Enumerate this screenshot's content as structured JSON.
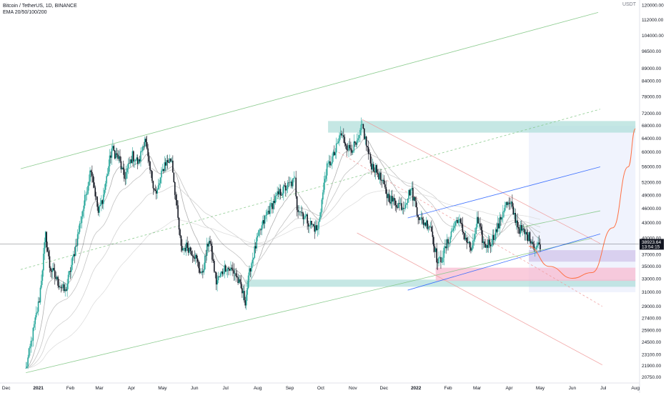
{
  "header": {
    "symbol": "Bitcoin / TetherUS, 1D, BINANCE",
    "indicator": "EMA 20/50/100/200",
    "currency": "USDT"
  },
  "colors": {
    "up": "#26a69a",
    "down": "#131722",
    "price_line": "#131722",
    "price_label_bg": "#131722",
    "green_zone": "#b2dfdb",
    "pink_zone": "#f8bbd0",
    "purple_zone": "#d1c4e9",
    "blue_zone": "#e3eafc",
    "channel_green": "#81c784",
    "channel_red": "#ef9a9a",
    "channel_blue": "#2962ff",
    "orange_curve": "#ff7043"
  },
  "chart_data": {
    "type": "candlestick",
    "y_scale": "log",
    "ylim": [
      20200,
      123000
    ],
    "x_ticks": [
      "Dec",
      "2021",
      "Feb",
      "Mar",
      "Apr",
      "May",
      "Jun",
      "Jul",
      "Aug",
      "Sep",
      "Oct",
      "Nov",
      "Dec",
      "2022",
      "Feb",
      "Mar",
      "Apr",
      "May",
      "Jun",
      "Jul",
      "Aug"
    ],
    "y_ticks": [
      "120000.00",
      "112000.00",
      "104000.00",
      "96500.00",
      "89000.00",
      "84000.00",
      "78000.00",
      "72000.00",
      "68000.00",
      "64000.00",
      "60000.00",
      "56000.00",
      "52000.00",
      "49000.00",
      "46000.00",
      "43000.00",
      "40000.00",
      "37000.00",
      "35000.00",
      "33000.00",
      "31000.00",
      "29000.00",
      "27400.00",
      "25900.00",
      "24500.00",
      "23100.00",
      "21900.00",
      "20750.00"
    ],
    "last_price": "38923.64",
    "countdown": "13:54:15",
    "zones": [
      {
        "name": "top-resistance",
        "y_low": 65800,
        "y_high": 69500,
        "start": "2021-10-08",
        "end": "2022-08-01",
        "color": "green_zone"
      },
      {
        "name": "support-green",
        "y_low": 31800,
        "y_high": 32900,
        "start": "2021-07-20",
        "end": "2022-08-01",
        "color": "green_zone"
      },
      {
        "name": "support-pink",
        "y_low": 32700,
        "y_high": 34800,
        "start": "2022-01-20",
        "end": "2022-08-01",
        "color": "pink_zone"
      },
      {
        "name": "support-purple",
        "y_low": 35800,
        "y_high": 37800,
        "start": "2022-04-20",
        "end": "2022-08-01",
        "color": "purple_zone"
      },
      {
        "name": "projection-box",
        "y_low": 31000,
        "y_high": 67900,
        "start": "2022-04-20",
        "end": "2022-08-01",
        "color": "blue_zone"
      }
    ],
    "lines": [
      {
        "name": "green-channel-top",
        "from": [
          "2020-12-15",
          55500
        ],
        "to": [
          "2022-06-26",
          116000
        ],
        "color": "channel_green",
        "style": "solid"
      },
      {
        "name": "green-channel-bottom",
        "from": [
          "2020-12-20",
          21200
        ],
        "to": [
          "2022-06-20",
          40000
        ],
        "color": "channel_green",
        "style": "solid"
      },
      {
        "name": "green-channel-mid",
        "from": [
          "2020-12-15",
          34500
        ],
        "to": [
          "2022-06-28",
          73500
        ],
        "color": "channel_green",
        "style": "dashed"
      },
      {
        "name": "red-channel-top",
        "from": [
          "2021-11-10",
          70000
        ],
        "to": [
          "2022-06-28",
          39000
        ],
        "color": "channel_red",
        "style": "solid"
      },
      {
        "name": "red-channel-mid",
        "from": [
          "2021-10-18",
          60000
        ],
        "to": [
          "2022-06-30",
          29000
        ],
        "color": "channel_red",
        "style": "dashed"
      },
      {
        "name": "red-channel-bottom",
        "from": [
          "2021-11-05",
          41000
        ],
        "to": [
          "2022-06-30",
          22000
        ],
        "color": "channel_red",
        "style": "solid"
      },
      {
        "name": "blue-channel-top",
        "from": [
          "2021-12-24",
          44000
        ],
        "to": [
          "2022-06-28",
          56000
        ],
        "color": "channel_blue",
        "style": "solid"
      },
      {
        "name": "blue-channel-bottom",
        "from": [
          "2021-12-24",
          31300
        ],
        "to": [
          "2022-06-28",
          40800
        ],
        "color": "channel_blue",
        "style": "solid"
      },
      {
        "name": "blue-channel-upper-mid",
        "from": [
          "2022-04-10",
          42000
        ],
        "to": [
          "2022-06-28",
          45500
        ],
        "color": "channel_green",
        "style": "solid"
      }
    ],
    "projection_curve": {
      "color": "orange_curve",
      "points": [
        [
          "2022-04-20",
          38500
        ],
        [
          "2022-05-10",
          35000
        ],
        [
          "2022-06-01",
          33100
        ],
        [
          "2022-06-20",
          34000
        ],
        [
          "2022-07-10",
          42000
        ],
        [
          "2022-07-25",
          56000
        ],
        [
          "2022-08-01",
          67000
        ]
      ]
    },
    "price_anchors": [
      [
        "2020-12-20",
        21500
      ],
      [
        "2021-01-02",
        30000
      ],
      [
        "2021-01-08",
        40500
      ],
      [
        "2021-01-12",
        35000
      ],
      [
        "2021-01-20",
        32500
      ],
      [
        "2021-01-27",
        31000
      ],
      [
        "2021-02-05",
        37500
      ],
      [
        "2021-02-15",
        48000
      ],
      [
        "2021-02-21",
        56000
      ],
      [
        "2021-02-28",
        45000
      ],
      [
        "2021-03-05",
        49000
      ],
      [
        "2021-03-13",
        61000
      ],
      [
        "2021-03-20",
        58000
      ],
      [
        "2021-03-25",
        53000
      ],
      [
        "2021-04-02",
        59000
      ],
      [
        "2021-04-08",
        57000
      ],
      [
        "2021-04-14",
        64500
      ],
      [
        "2021-04-18",
        56000
      ],
      [
        "2021-04-25",
        49000
      ],
      [
        "2021-05-03",
        57000
      ],
      [
        "2021-05-10",
        58000
      ],
      [
        "2021-05-13",
        50000
      ],
      [
        "2021-05-19",
        38000
      ],
      [
        "2021-05-25",
        38500
      ],
      [
        "2021-06-01",
        37000
      ],
      [
        "2021-06-08",
        33500
      ],
      [
        "2021-06-15",
        40000
      ],
      [
        "2021-06-22",
        32500
      ],
      [
        "2021-07-01",
        35000
      ],
      [
        "2021-07-10",
        34000
      ],
      [
        "2021-07-20",
        29800
      ],
      [
        "2021-07-25",
        35000
      ],
      [
        "2021-08-01",
        40000
      ],
      [
        "2021-08-10",
        45000
      ],
      [
        "2021-08-15",
        47000
      ],
      [
        "2021-08-22",
        49500
      ],
      [
        "2021-09-06",
        52500
      ],
      [
        "2021-09-08",
        46500
      ],
      [
        "2021-09-20",
        43000
      ],
      [
        "2021-09-28",
        41500
      ],
      [
        "2021-10-06",
        55000
      ],
      [
        "2021-10-15",
        60000
      ],
      [
        "2021-10-20",
        65500
      ],
      [
        "2021-10-28",
        61000
      ],
      [
        "2021-11-05",
        62000
      ],
      [
        "2021-11-10",
        68000
      ],
      [
        "2021-11-18",
        57000
      ],
      [
        "2021-11-26",
        54000
      ],
      [
        "2021-12-04",
        49000
      ],
      [
        "2021-12-10",
        47500
      ],
      [
        "2021-12-20",
        46500
      ],
      [
        "2021-12-27",
        50500
      ],
      [
        "2022-01-05",
        43500
      ],
      [
        "2022-01-15",
        42500
      ],
      [
        "2022-01-22",
        35500
      ],
      [
        "2022-01-26",
        36500
      ],
      [
        "2022-02-05",
        41500
      ],
      [
        "2022-02-10",
        44000
      ],
      [
        "2022-02-18",
        40000
      ],
      [
        "2022-02-24",
        37500
      ],
      [
        "2022-03-01",
        43500
      ],
      [
        "2022-03-08",
        38500
      ],
      [
        "2022-03-15",
        39500
      ],
      [
        "2022-03-22",
        42500
      ],
      [
        "2022-03-28",
        47000
      ],
      [
        "2022-04-03",
        46500
      ],
      [
        "2022-04-10",
        42000
      ],
      [
        "2022-04-18",
        40500
      ],
      [
        "2022-04-22",
        40000
      ],
      [
        "2022-04-26",
        38200
      ],
      [
        "2022-05-01",
        38900
      ]
    ],
    "ema_series": [
      {
        "name": "EMA 20",
        "period": 20
      },
      {
        "name": "EMA 50",
        "period": 50
      },
      {
        "name": "EMA 100",
        "period": 100
      },
      {
        "name": "EMA 200",
        "period": 200
      }
    ],
    "date_range": [
      "2020-11-25",
      "2022-08-05"
    ]
  }
}
